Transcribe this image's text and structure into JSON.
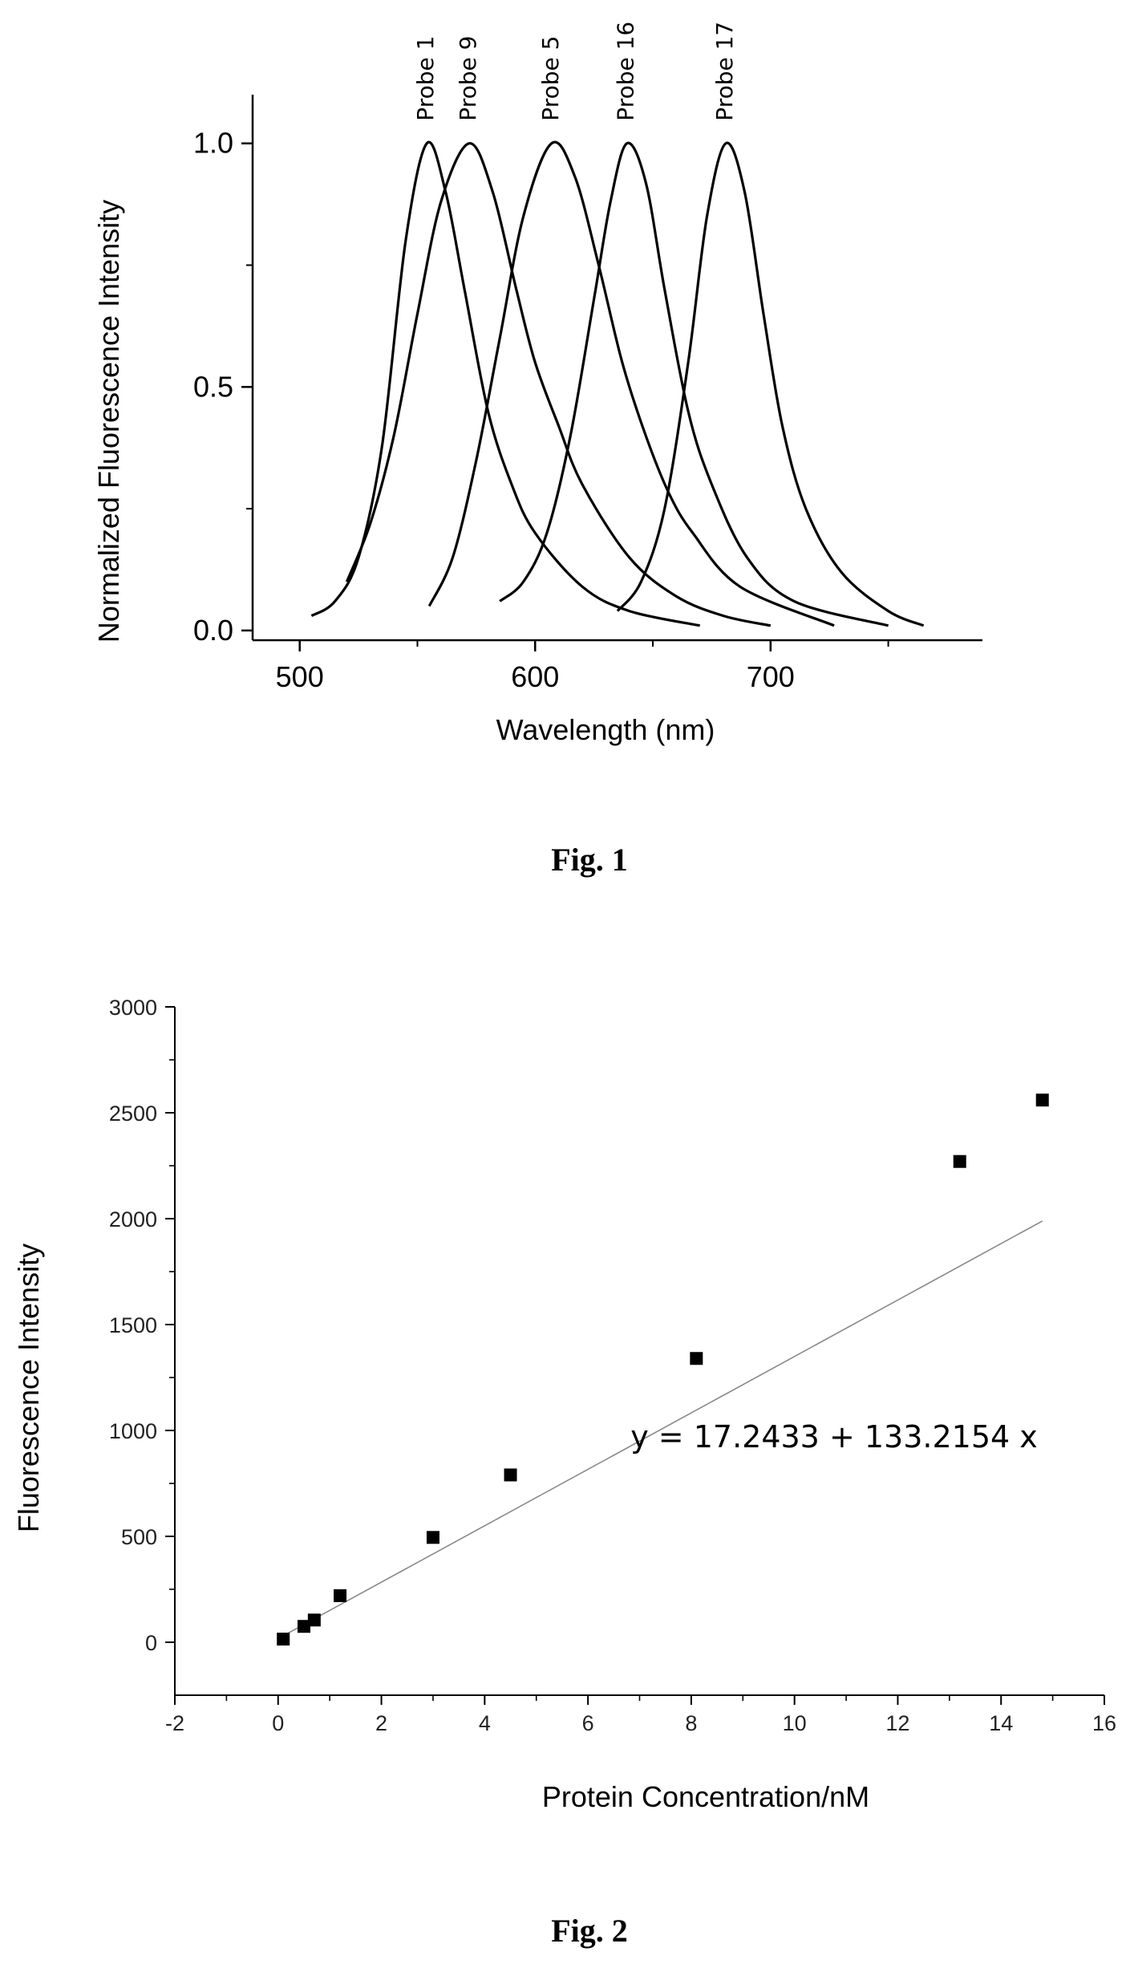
{
  "chart_data": [
    {
      "type": "line",
      "title": "",
      "xlabel": "Wavelength (nm)",
      "ylabel": "Normalized Fluorescence Intensity",
      "xlim": [
        480,
        790
      ],
      "ylim": [
        -0.02,
        1.1
      ],
      "x_ticks": [
        {
          "value": 500,
          "label": "500"
        },
        {
          "value": 600,
          "label": "600"
        },
        {
          "value": 700,
          "label": "700"
        }
      ],
      "y_ticks": [
        {
          "value": 0.0,
          "label": "0.0"
        },
        {
          "value": 0.5,
          "label": "0.5"
        },
        {
          "value": 1.0,
          "label": "1.0"
        }
      ],
      "grid": false,
      "series": [
        {
          "name": "Probe 1",
          "peak": 554,
          "values": [
            [
              505,
              0.03
            ],
            [
              515,
              0.06
            ],
            [
              525,
              0.15
            ],
            [
              535,
              0.38
            ],
            [
              545,
              0.8
            ],
            [
              554,
              1.0
            ],
            [
              562,
              0.9
            ],
            [
              570,
              0.7
            ],
            [
              580,
              0.45
            ],
            [
              590,
              0.3
            ],
            [
              600,
              0.2
            ],
            [
              620,
              0.09
            ],
            [
              640,
              0.04
            ],
            [
              670,
              0.01
            ]
          ]
        },
        {
          "name": "Probe 9",
          "peak": 572,
          "values": [
            [
              520,
              0.1
            ],
            [
              530,
              0.22
            ],
            [
              540,
              0.4
            ],
            [
              550,
              0.65
            ],
            [
              560,
              0.88
            ],
            [
              572,
              1.0
            ],
            [
              582,
              0.9
            ],
            [
              592,
              0.7
            ],
            [
              600,
              0.55
            ],
            [
              610,
              0.42
            ],
            [
              620,
              0.3
            ],
            [
              640,
              0.15
            ],
            [
              660,
              0.07
            ],
            [
              680,
              0.03
            ],
            [
              700,
              0.01
            ]
          ]
        },
        {
          "name": "Probe 5",
          "peak": 607,
          "values": [
            [
              555,
              0.05
            ],
            [
              565,
              0.15
            ],
            [
              575,
              0.35
            ],
            [
              585,
              0.6
            ],
            [
              595,
              0.85
            ],
            [
              607,
              1.0
            ],
            [
              617,
              0.93
            ],
            [
              627,
              0.75
            ],
            [
              637,
              0.55
            ],
            [
              647,
              0.4
            ],
            [
              657,
              0.28
            ],
            [
              667,
              0.2
            ],
            [
              687,
              0.09
            ],
            [
              727,
              0.01
            ]
          ]
        },
        {
          "name": "Probe 16",
          "peak": 639,
          "values": [
            [
              585,
              0.06
            ],
            [
              595,
              0.1
            ],
            [
              605,
              0.2
            ],
            [
              615,
              0.4
            ],
            [
              625,
              0.68
            ],
            [
              632,
              0.88
            ],
            [
              639,
              1.0
            ],
            [
              647,
              0.92
            ],
            [
              655,
              0.7
            ],
            [
              665,
              0.45
            ],
            [
              675,
              0.3
            ],
            [
              690,
              0.15
            ],
            [
              710,
              0.06
            ],
            [
              750,
              0.01
            ]
          ]
        },
        {
          "name": "Probe 17",
          "peak": 681,
          "values": [
            [
              635,
              0.04
            ],
            [
              645,
              0.1
            ],
            [
              655,
              0.25
            ],
            [
              665,
              0.55
            ],
            [
              673,
              0.85
            ],
            [
              681,
              1.0
            ],
            [
              689,
              0.9
            ],
            [
              697,
              0.65
            ],
            [
              705,
              0.42
            ],
            [
              715,
              0.25
            ],
            [
              730,
              0.12
            ],
            [
              750,
              0.04
            ],
            [
              765,
              0.01
            ]
          ]
        }
      ]
    },
    {
      "type": "scatter",
      "title": "",
      "xlabel": "Protein Concentration/nM",
      "ylabel": "Fluorescence Intensity",
      "xlim": [
        -2,
        16
      ],
      "ylim": [
        -250,
        3000
      ],
      "x_ticks": [
        {
          "value": -2,
          "label": "-2"
        },
        {
          "value": 0,
          "label": "0"
        },
        {
          "value": 2,
          "label": "2"
        },
        {
          "value": 4,
          "label": "4"
        },
        {
          "value": 6,
          "label": "6"
        },
        {
          "value": 8,
          "label": "8"
        },
        {
          "value": 10,
          "label": "10"
        },
        {
          "value": 12,
          "label": "12"
        },
        {
          "value": 14,
          "label": "14"
        },
        {
          "value": 16,
          "label": "16"
        }
      ],
      "y_ticks": [
        {
          "value": 0,
          "label": "0"
        },
        {
          "value": 500,
          "label": "500"
        },
        {
          "value": 1000,
          "label": "1000"
        },
        {
          "value": 1500,
          "label": "1500"
        },
        {
          "value": 2000,
          "label": "2000"
        },
        {
          "value": 2500,
          "label": "2500"
        },
        {
          "value": 3000,
          "label": "3000"
        }
      ],
      "grid": false,
      "points": [
        [
          0.1,
          15
        ],
        [
          0.5,
          75
        ],
        [
          0.7,
          105
        ],
        [
          1.2,
          220
        ],
        [
          3.0,
          495
        ],
        [
          4.5,
          790
        ],
        [
          8.1,
          1340
        ],
        [
          13.2,
          2270
        ],
        [
          14.8,
          2560
        ]
      ],
      "fit": {
        "intercept": 17.2433,
        "slope": 133.2154,
        "x_range": [
          0.1,
          14.8
        ]
      },
      "annotation": "y = 17.2433 + 133.2154 x"
    }
  ],
  "captions": {
    "fig1": "Fig. 1",
    "fig2": "Fig. 2"
  },
  "colors": {
    "ink": "#000000",
    "fit_line": "#888888",
    "background": "#ffffff"
  }
}
